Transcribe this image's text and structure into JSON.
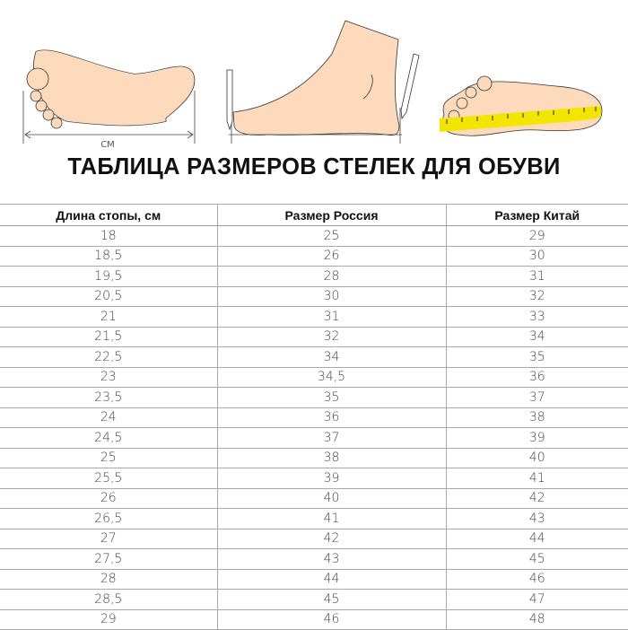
{
  "illustration": {
    "unit_label": "СМ",
    "skin_color": "#fcdabb",
    "ruler_color": "#f2e500"
  },
  "title": "ТАБЛИЦА РАЗМЕРОВ СТЕЛЕК ДЛЯ ОБУВИ",
  "table": {
    "headers": [
      "Длина стопы, см",
      "Размер Россия",
      "Размер Китай"
    ],
    "rows": [
      [
        "18",
        "25",
        "29"
      ],
      [
        "18,5",
        "26",
        "30"
      ],
      [
        "19,5",
        "28",
        "31"
      ],
      [
        "20,5",
        "30",
        "32"
      ],
      [
        "21",
        "31",
        "33"
      ],
      [
        "21,5",
        "32",
        "34"
      ],
      [
        "22,5",
        "34",
        "35"
      ],
      [
        "23",
        "34,5",
        "36"
      ],
      [
        "23,5",
        "35",
        "37"
      ],
      [
        "24",
        "36",
        "38"
      ],
      [
        "24,5",
        "37",
        "39"
      ],
      [
        "25",
        "38",
        "40"
      ],
      [
        "25,5",
        "39",
        "41"
      ],
      [
        "26",
        "40",
        "42"
      ],
      [
        "26,5",
        "41",
        "43"
      ],
      [
        "27",
        "42",
        "44"
      ],
      [
        "27,5",
        "43",
        "45"
      ],
      [
        "28",
        "44",
        "46"
      ],
      [
        "28,5",
        "45",
        "47"
      ],
      [
        "29",
        "46",
        "48"
      ]
    ]
  }
}
